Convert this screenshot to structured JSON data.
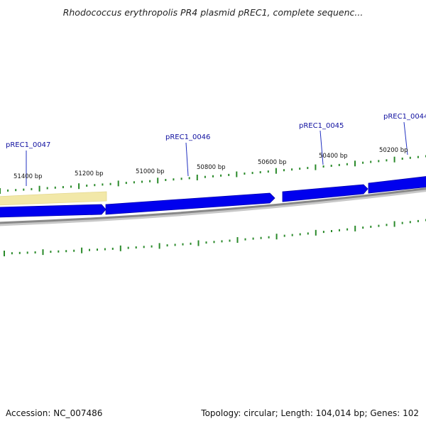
{
  "header": {
    "title": "Rhodococcus erythropolis PR4 plasmid pREC1, complete sequenc..."
  },
  "footer": {
    "accession": "Accession: NC_007486",
    "summary": "Topology: circular; Length: 104,014 bp; Genes: 102"
  },
  "scale": {
    "tick_labels": [
      "51400 bp",
      "51200 bp",
      "51000 bp",
      "50800 bp",
      "50600 bp",
      "50400 bp",
      "50200 bp"
    ]
  },
  "genes": [
    {
      "id": "pREC1_0047"
    },
    {
      "id": "pREC1_0046"
    },
    {
      "id": "pREC1_0045"
    },
    {
      "id": "pREC1_0044"
    }
  ],
  "colors": {
    "gene_forward": "#0000ee",
    "highlight": "#f2e8a8",
    "backbone": "#888888",
    "tick": "#2a8a2a",
    "gene_label": "#1010a0"
  }
}
